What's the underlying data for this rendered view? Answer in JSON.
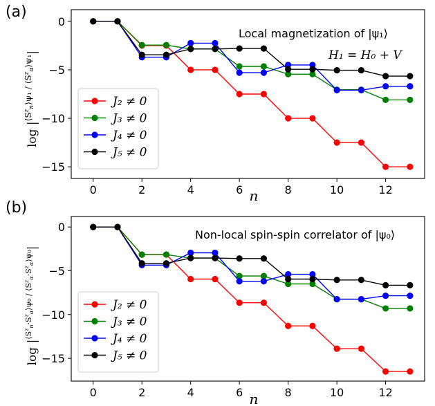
{
  "chart_data": [
    {
      "panel_tag": "(a)",
      "type": "line",
      "annotation": "Local magnetization of |ψ₁⟩",
      "annotation2": "H₁ = H₀ + V",
      "xlabel": "n",
      "ylabel": "log |⟨Sᶻₙ⟩ψ₁ / ⟨Sᶻα⟩ψ₁|",
      "xlim": [
        -0.9,
        13.6
      ],
      "ylim": [
        -16.2,
        1.2
      ],
      "xticks": [
        0,
        2,
        4,
        6,
        8,
        10,
        12
      ],
      "yticks": [
        0,
        -5,
        -10,
        -15
      ],
      "legend_position": "lower-left",
      "x": [
        0,
        1,
        2,
        3,
        4,
        5,
        6,
        7,
        8,
        9,
        10,
        11,
        12,
        13
      ],
      "series": [
        {
          "name": "J₂ ≠ 0",
          "color": "#ff0000",
          "values": [
            0,
            0,
            -2.5,
            -2.5,
            -5.0,
            -5.0,
            -7.5,
            -7.5,
            -10.0,
            -10.0,
            -12.5,
            -12.5,
            -15.0,
            -15.0
          ]
        },
        {
          "name": "J₃ ≠ 0",
          "color": "#008000",
          "values": [
            0,
            0,
            -2.45,
            -2.45,
            -2.85,
            -2.85,
            -4.65,
            -4.65,
            -5.45,
            -5.45,
            -7.05,
            -7.05,
            -8.1,
            -8.1
          ]
        },
        {
          "name": "J₄ ≠ 0",
          "color": "#0000ff",
          "values": [
            0,
            0,
            -3.7,
            -3.7,
            -2.25,
            -2.25,
            -5.3,
            -5.3,
            -4.5,
            -4.5,
            -7.1,
            -7.1,
            -6.7,
            -6.7
          ]
        },
        {
          "name": "J₅ ≠ 0",
          "color": "#000000",
          "values": [
            0,
            0,
            -3.45,
            -3.45,
            -2.85,
            -2.85,
            -2.8,
            -2.8,
            -4.95,
            -4.95,
            -5.05,
            -5.05,
            -5.65,
            -5.65
          ]
        }
      ]
    },
    {
      "panel_tag": "(b)",
      "type": "line",
      "annotation": "Non-local spin-spin correlator of |ψ₀⟩",
      "xlabel": "n",
      "ylabel": "log |⟨Sᶻₙ·Sᶻα⟩ψ₀ / ⟨Sᶻα·Sᶻα⟩ψ₀|",
      "xlim": [
        -0.9,
        13.6
      ],
      "ylim": [
        -17.6,
        1.2
      ],
      "xticks": [
        0,
        2,
        4,
        6,
        8,
        10,
        12
      ],
      "yticks": [
        0,
        -5,
        -10,
        -15
      ],
      "legend_position": "lower-left",
      "x": [
        0,
        1,
        2,
        3,
        4,
        5,
        6,
        7,
        8,
        9,
        10,
        11,
        12,
        13
      ],
      "series": [
        {
          "name": "J₂ ≠ 0",
          "color": "#ff0000",
          "values": [
            0,
            0,
            -3.15,
            -3.15,
            -5.95,
            -5.95,
            -8.65,
            -8.65,
            -11.3,
            -11.3,
            -13.9,
            -13.9,
            -16.5,
            -16.5
          ]
        },
        {
          "name": "J₃ ≠ 0",
          "color": "#008000",
          "values": [
            0,
            0,
            -3.15,
            -3.15,
            -3.55,
            -3.55,
            -5.6,
            -5.6,
            -6.5,
            -6.5,
            -8.25,
            -8.25,
            -9.3,
            -9.3
          ]
        },
        {
          "name": "J₄ ≠ 0",
          "color": "#0000ff",
          "values": [
            0,
            0,
            -4.35,
            -4.35,
            -2.95,
            -2.95,
            -6.2,
            -6.2,
            -5.4,
            -5.4,
            -8.25,
            -8.25,
            -7.85,
            -7.85
          ]
        },
        {
          "name": "J₅ ≠ 0",
          "color": "#000000",
          "values": [
            0,
            0,
            -4.15,
            -4.15,
            -3.55,
            -3.55,
            -3.6,
            -3.6,
            -5.95,
            -5.95,
            -6.05,
            -6.05,
            -6.65,
            -6.65
          ]
        }
      ]
    }
  ]
}
